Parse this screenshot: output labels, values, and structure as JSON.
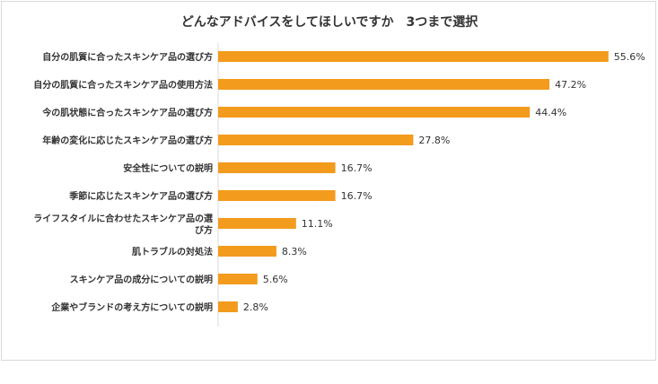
{
  "chart_data": {
    "type": "bar",
    "orientation": "horizontal",
    "title": "どんなアドバイスをしてほしいですか　3つまで選択",
    "categories": [
      "自分の肌質に合ったスキンケア品の選び方",
      "自分の肌質に合ったスキンケア品の使用方法",
      "今の肌状態に合ったスキンケア品の選び方",
      "年齢の変化に応じたスキンケア品の選び方",
      "安全性についての説明",
      "季節に応じたスキンケア品の選び方",
      "ライフスタイルに合わせたスキンケア品の選び方",
      "肌トラブルの対処法",
      "スキンケア品の成分についての説明",
      "企業やブランドの考え方についての説明"
    ],
    "values": [
      55.6,
      47.2,
      44.4,
      27.8,
      16.7,
      16.7,
      11.1,
      8.3,
      5.6,
      2.8
    ],
    "value_labels": [
      "55.6%",
      "47.2%",
      "44.4%",
      "27.8%",
      "16.7%",
      "16.7%",
      "11.1%",
      "8.3%",
      "5.6%",
      "2.8%"
    ],
    "xlim": [
      0,
      60
    ],
    "grid": false,
    "legend": "none",
    "bar_color": "#f29b1d"
  }
}
